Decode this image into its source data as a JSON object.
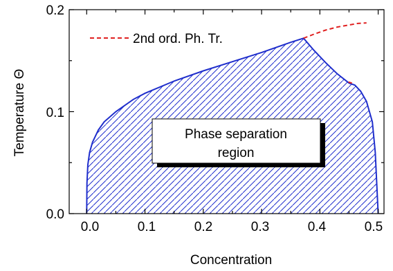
{
  "chart_data": {
    "type": "line",
    "title": "",
    "xlabel": "Concentration",
    "ylabel": "Temperature Θ",
    "xlim": [
      -0.03,
      0.51
    ],
    "ylim": [
      0.0,
      0.2
    ],
    "xticks": [
      "0.0",
      "0.1",
      "0.2",
      "0.3",
      "0.4",
      "0.5"
    ],
    "yticks": [
      "0.0",
      "0.1",
      "0.2"
    ],
    "legend": {
      "position": "top-left",
      "entries": [
        {
          "label": "2nd ord. Ph. Tr.",
          "color": "#e02020",
          "style": "dashed"
        }
      ]
    },
    "annotation": {
      "line1": "Phase separation",
      "line2": "region",
      "position": "center"
    },
    "region_color": "#1f2ecc",
    "series": [
      {
        "role": "phase-boundary",
        "color": "#1f2ecc",
        "x": [
          0.0,
          0.0005,
          0.002,
          0.005,
          0.01,
          0.02,
          0.03,
          0.05,
          0.08,
          0.1,
          0.15,
          0.2,
          0.25,
          0.3,
          0.35,
          0.372,
          0.39,
          0.41,
          0.43,
          0.45,
          0.46,
          0.47,
          0.48,
          0.49,
          0.495,
          0.5
        ],
        "y": [
          0.0,
          0.03,
          0.048,
          0.06,
          0.07,
          0.082,
          0.09,
          0.1,
          0.112,
          0.118,
          0.13,
          0.14,
          0.149,
          0.158,
          0.168,
          0.172,
          0.16,
          0.148,
          0.137,
          0.128,
          0.126,
          0.12,
          0.11,
          0.09,
          0.06,
          0.0
        ]
      },
      {
        "name": "2nd ord. Ph. Tr.",
        "color": "#e02020",
        "style": "dashed",
        "x": [
          0.372,
          0.39,
          0.41,
          0.43,
          0.45,
          0.465,
          0.48
        ],
        "y": [
          0.172,
          0.176,
          0.18,
          0.183,
          0.185,
          0.1865,
          0.187
        ]
      },
      {
        "name": "2nd ord. Ph. Tr.",
        "color": "#e02020",
        "style": "dashed",
        "x": [
          0.449,
          0.455
        ],
        "y": [
          0.129,
          0.128
        ]
      }
    ]
  }
}
